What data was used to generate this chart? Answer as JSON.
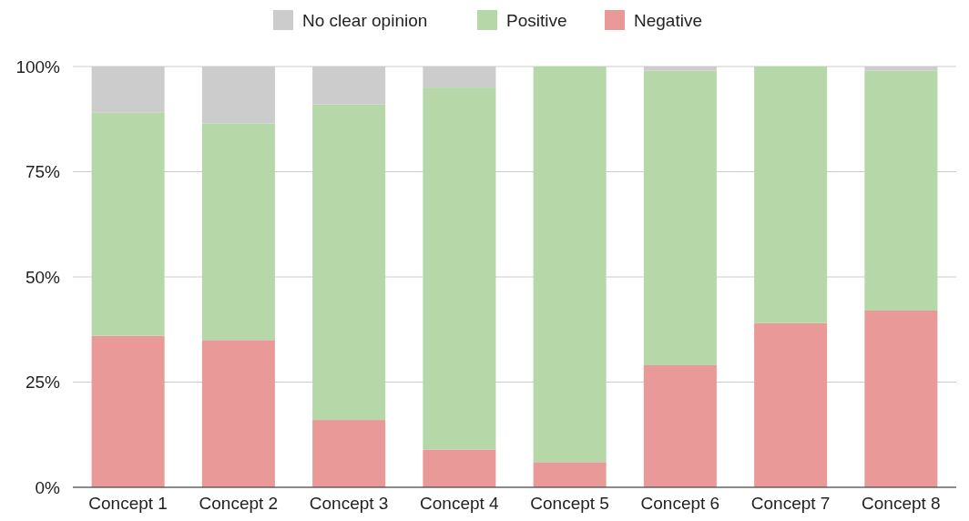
{
  "chart_data": {
    "type": "bar",
    "stacked": true,
    "categories": [
      "Concept 1",
      "Concept 2",
      "Concept 3",
      "Concept 4",
      "Concept 5",
      "Concept 6",
      "Concept 7",
      "Concept 8"
    ],
    "series": [
      {
        "name": "Negative",
        "color": "#ea9999",
        "values": [
          36,
          35,
          16,
          9,
          6,
          29,
          39,
          42
        ]
      },
      {
        "name": "Positive",
        "color": "#b6d7a8",
        "values": [
          53,
          51.5,
          75,
          86,
          94,
          70,
          61,
          57
        ]
      },
      {
        "name": "No clear opinion",
        "color": "#cccccc",
        "values": [
          11,
          13.5,
          9,
          5,
          0,
          1,
          0,
          1
        ]
      }
    ],
    "ylim": [
      0,
      100
    ],
    "yticks": [
      {
        "value": 0,
        "label": "0%"
      },
      {
        "value": 25,
        "label": "25%"
      },
      {
        "value": 50,
        "label": "50%"
      },
      {
        "value": 75,
        "label": "75%"
      },
      {
        "value": 100,
        "label": "100%"
      }
    ],
    "grid": "y",
    "legend": "top"
  }
}
